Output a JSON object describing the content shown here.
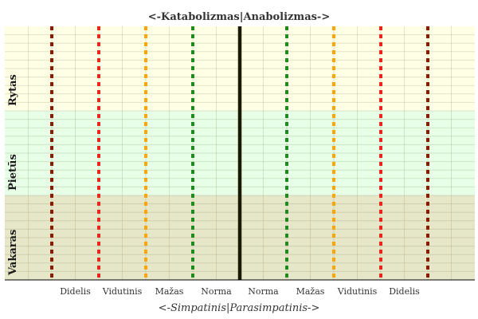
{
  "chart_data": {
    "type": "heatmap",
    "title": "<-Katabolizmas|Anabolizmas->",
    "xlabel": "<-Simpatinis|Parasimpatinis->",
    "ylabel": "",
    "x_categories": [
      "Didelis",
      "Vidutinis",
      "Mažas",
      "Norma",
      "Norma",
      "Mažas",
      "Vidutinis",
      "Didelis"
    ],
    "bands": [
      {
        "label": "Rytas",
        "color": "#ffffe6"
      },
      {
        "label": "Pietūs",
        "color": "#e6ffe6"
      },
      {
        "label": "Vakaras",
        "color": "#e6e6c8"
      }
    ],
    "reference_lines": [
      {
        "x": -4,
        "color": "#8b1a00",
        "style": "dashed"
      },
      {
        "x": -3,
        "color": "#e8261e",
        "style": "dashed"
      },
      {
        "x": -2,
        "color": "#ffa500",
        "style": "dashed"
      },
      {
        "x": -1,
        "color": "#1f8a1f",
        "style": "dashed"
      },
      {
        "x": 0,
        "color": "#1a1a00",
        "style": "solid"
      },
      {
        "x": 1,
        "color": "#1f8a1f",
        "style": "dashed"
      },
      {
        "x": 2,
        "color": "#ffa500",
        "style": "dashed"
      },
      {
        "x": 3,
        "color": "#e8261e",
        "style": "dashed"
      },
      {
        "x": 4,
        "color": "#8b1a00",
        "style": "dashed"
      }
    ],
    "xlim": [
      -5,
      5
    ],
    "grid": true
  }
}
